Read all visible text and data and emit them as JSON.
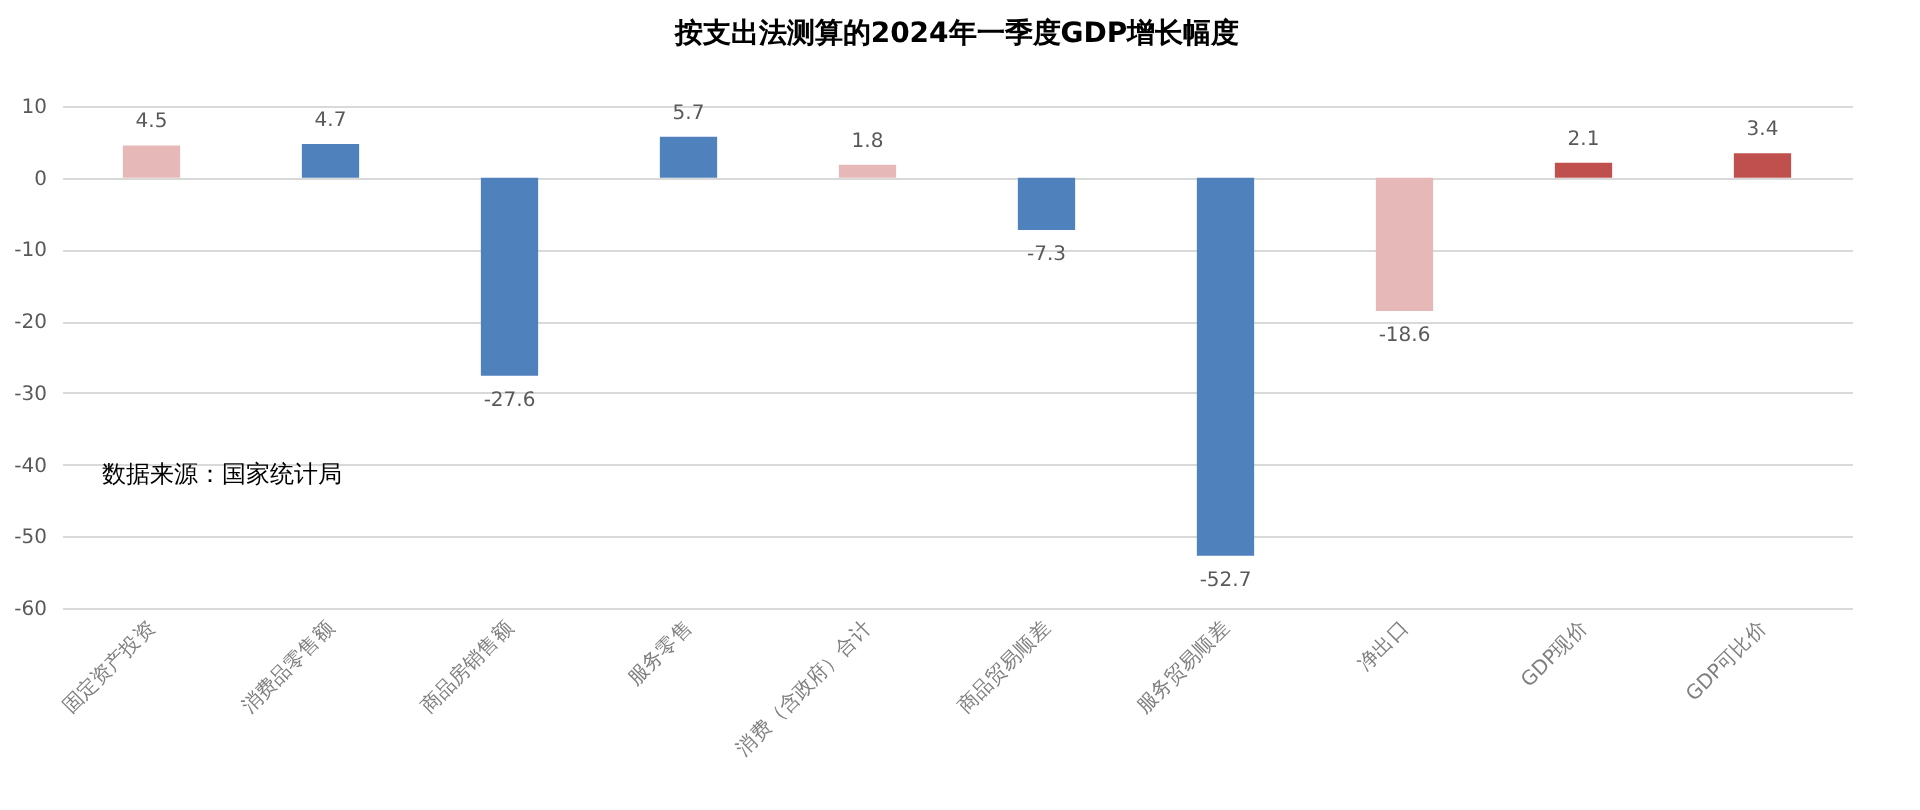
{
  "chart_data": {
    "type": "bar",
    "title": "按支出法测算的2024年一季度GDP增长幅度",
    "categories": [
      "固定资产投资",
      "消费品零售额",
      "商品房销售额",
      "服务零售",
      "消费（含政府）合计",
      "商品贸易顺差",
      "服务贸易顺差",
      "净出口",
      "GDP现价",
      "GDP可比价"
    ],
    "values": [
      4.5,
      4.7,
      -27.6,
      5.7,
      1.8,
      -7.3,
      -52.7,
      -18.6,
      2.1,
      3.4
    ],
    "colors": [
      "#e6b9b8",
      "#4f81bd",
      "#4f81bd",
      "#4f81bd",
      "#e6b9b8",
      "#4f81bd",
      "#4f81bd",
      "#e6b9b8",
      "#c0504d",
      "#c0504d"
    ],
    "ylim": [
      -60,
      10
    ],
    "yticks": [
      -60,
      -50,
      -40,
      -30,
      -20,
      -10,
      0,
      10
    ],
    "grid": "y",
    "data_labels": true,
    "annotations": [
      "数据来源：国家统计局"
    ]
  }
}
